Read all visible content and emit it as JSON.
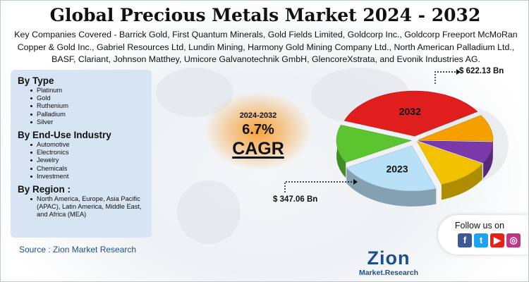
{
  "title": "Global Precious Metals Market 2024 - 2032",
  "subtitle": "Key Companies Covered - Barrick Gold, First Quantum Minerals, Gold Fields Limited, Goldcorp Inc., Goldcorp Freeport McMoRan Copper & Gold Inc., Gabriel Resources Ltd, Lundin Mining, Harmony Gold Mining Company Ltd., North American Palladium Ltd., BASF, Clariant, Johnson Matthey, Umicore Galvanotechnik GmbH, GlencoreXstrata, and Evonik Industries AG.",
  "segments": {
    "type": {
      "heading": "By Type",
      "items": [
        "Platinum",
        "Gold",
        "Ruthenium",
        "Palladium",
        "Silver"
      ]
    },
    "end_use": {
      "heading": "By End-Use Industry",
      "items": [
        "Automotive",
        "Electronics",
        "Jewelry",
        "Chemicals",
        "Investment"
      ]
    },
    "region": {
      "heading": "By Region :",
      "items": [
        "North America, Europe, Asia Pacific (APAC), Latin America, Middle East, and Africa (MEA)"
      ]
    }
  },
  "source": "Source : Zion Market Research",
  "cagr": {
    "period": "2024-2032",
    "value": "6.7%",
    "label": "CAGR"
  },
  "follow": {
    "label": "Follow us on",
    "icons": [
      {
        "name": "facebook-icon",
        "glyph": "f",
        "color": "#3b5998"
      },
      {
        "name": "twitter-icon",
        "glyph": "t",
        "color": "#1da1f2"
      },
      {
        "name": "youtube-icon",
        "glyph": "▶",
        "color": "#e62117"
      },
      {
        "name": "instagram-icon",
        "glyph": "◎",
        "color": "#c13584"
      }
    ]
  },
  "logo": {
    "main": "Zion",
    "sub": "Market.Research"
  },
  "chart_data": {
    "type": "pie",
    "title": "",
    "series": [
      {
        "name": "2023",
        "value": 347.06,
        "unit": "$ Bn",
        "label": "$ 347.06 Bn"
      },
      {
        "name": "2032",
        "value": 622.13,
        "unit": "$ Bn",
        "label": "$ 622.13 Bn"
      }
    ],
    "slice_colors": [
      "#f2c200",
      "#b8e0f6",
      "#5cc42e",
      "#7a38a8",
      "#e01e1e",
      "#f5a000"
    ]
  }
}
